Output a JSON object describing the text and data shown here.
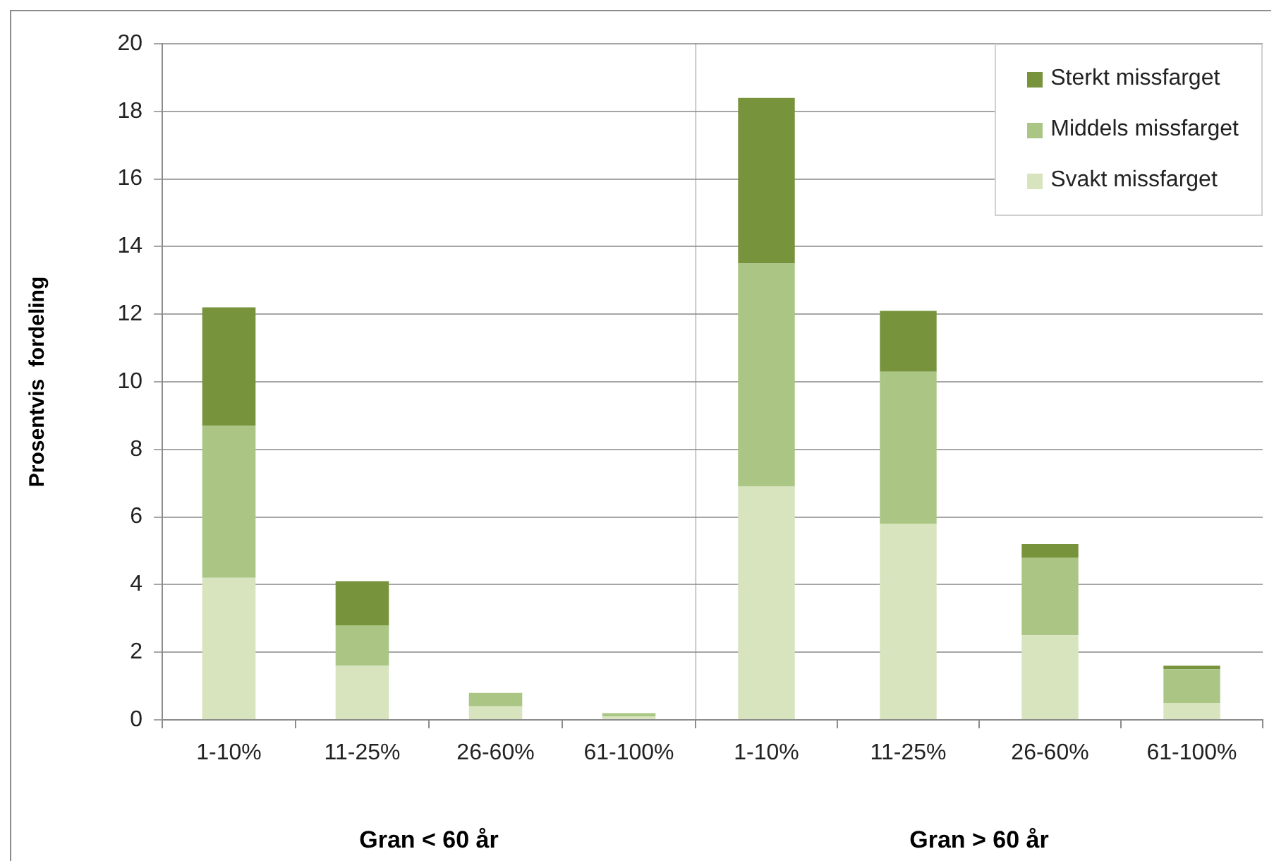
{
  "chart_data": [
    {
      "type": "bar",
      "stacked": true,
      "ylabel": "Prosentvis  fordeling",
      "xlabel": "Gran < 60 år",
      "categories": [
        "1-10%",
        "11-25%",
        "26-60%",
        "61-100%"
      ],
      "series": [
        {
          "color": "#d7e4bd",
          "values": [
            4.2,
            1.6,
            0.4,
            0.1
          ]
        },
        {
          "color": "#aac584",
          "values": [
            4.5,
            1.2,
            0.4,
            0.1
          ]
        },
        {
          "color": "#77933c",
          "values": [
            3.5,
            1.3,
            0,
            0
          ]
        }
      ],
      "ylim": [
        0,
        20
      ],
      "yticks": [
        0,
        2,
        4,
        6,
        8,
        10,
        12,
        14,
        16,
        18,
        20
      ],
      "grid": "y",
      "legend": false
    },
    {
      "type": "bar",
      "stacked": true,
      "xlabel": "Gran > 60 år",
      "categories": [
        "1-10%",
        "11-25%",
        "26-60%",
        "61-100%"
      ],
      "series": [
        {
          "name": "Svakt missfarget",
          "color": "#d7e4bd",
          "values": [
            6.9,
            5.8,
            2.5,
            0.5
          ]
        },
        {
          "name": "Middels missfarget",
          "color": "#aac584",
          "values": [
            6.6,
            4.5,
            2.3,
            1.0
          ]
        },
        {
          "name": "Sterkt missfarget",
          "color": "#77933c",
          "values": [
            4.9,
            1.8,
            0.4,
            0.1
          ]
        }
      ],
      "ylim": [
        0,
        20
      ],
      "yticks": [
        0,
        2,
        4,
        6,
        8,
        10,
        12,
        14,
        16,
        18,
        20
      ],
      "grid": "y",
      "legend": "top right",
      "tick_labels": "x"
    }
  ]
}
